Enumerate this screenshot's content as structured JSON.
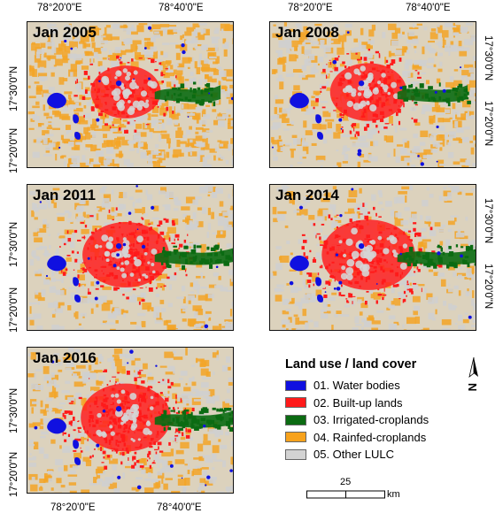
{
  "panels": [
    {
      "title": "Jan 2005"
    },
    {
      "title": "Jan 2008"
    },
    {
      "title": "Jan 2011"
    },
    {
      "title": "Jan 2014"
    },
    {
      "title": "Jan 2016"
    }
  ],
  "axes": {
    "lon_ticks": [
      "78°20'0\"E",
      "78°40'0\"E"
    ],
    "lat_ticks": [
      "17°20'0\"N",
      "17°30'0\"N"
    ]
  },
  "legend": {
    "title": "Land use / land cover",
    "items": [
      {
        "label": "01. Water bodies",
        "color": "#1010e0"
      },
      {
        "label": "02. Built-up lands",
        "color": "#ff1a1a"
      },
      {
        "label": "03. Irrigated-croplands",
        "color": "#0b6b12"
      },
      {
        "label": "04. Rainfed-croplands",
        "color": "#f7a21c"
      },
      {
        "label": "05. Other LULC",
        "color": "#d3d3d3"
      }
    ]
  },
  "scale": {
    "value": "25",
    "unit": "km"
  },
  "north_arrow": {
    "icon": "north-arrow-icon"
  }
}
